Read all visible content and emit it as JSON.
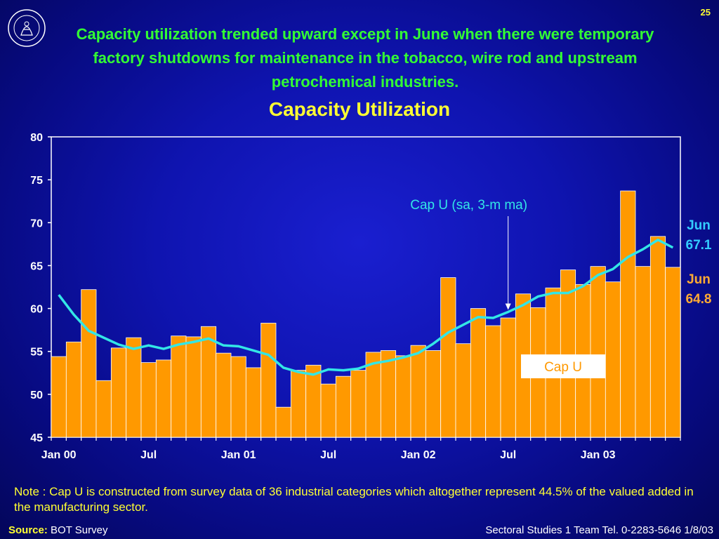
{
  "page_number": "25",
  "headline": "Capacity utilization trended upward except in June when there were temporary factory shutdowns for maintenance in the tobacco, wire rod and upstream petrochemical industries.",
  "note": "Note :  Cap U is constructed from survey data of 36 industrial categories which altogether represent 44.5% of the valued added in the manufacturing sector.",
  "source": {
    "label": "Source:",
    "value": "BOT Survey"
  },
  "footer": "Sectoral Studies 1 Team  Tel. 0-2283-5646 1/8/03",
  "colors": {
    "bar": "#ff9900",
    "line": "#33e6e6",
    "text": "#ffff33",
    "headline": "#33ff33",
    "series_label_line": "#33ccff",
    "series_label_bar": "#ffaa33"
  },
  "chart_data": {
    "type": "bar",
    "title": "Capacity Utilization",
    "xlabel": "",
    "ylabel": "",
    "ylim": [
      45,
      80
    ],
    "yticks": [
      45,
      50,
      55,
      60,
      65,
      70,
      75,
      80
    ],
    "grid": false,
    "x_tick_labels": [
      {
        "index": 0,
        "label": "Jan 00"
      },
      {
        "index": 6,
        "label": "Jul"
      },
      {
        "index": 12,
        "label": "Jan 01"
      },
      {
        "index": 18,
        "label": "Jul"
      },
      {
        "index": 24,
        "label": "Jan 02"
      },
      {
        "index": 30,
        "label": "Jul"
      },
      {
        "index": 36,
        "label": "Jan 03"
      }
    ],
    "series": [
      {
        "name": "Cap U",
        "type": "bar",
        "values": [
          54.4,
          56.1,
          62.2,
          51.6,
          55.4,
          56.6,
          53.7,
          54.0,
          56.8,
          56.7,
          57.9,
          54.8,
          54.4,
          53.1,
          58.3,
          48.5,
          52.8,
          53.4,
          51.2,
          52.1,
          52.8,
          54.9,
          55.1,
          54.5,
          55.7,
          55.1,
          63.6,
          55.9,
          60.0,
          58.0,
          58.9,
          61.7,
          60.1,
          62.4,
          64.5,
          62.8,
          64.9,
          63.1,
          73.7,
          64.9,
          68.4,
          64.8
        ]
      },
      {
        "name": "Cap U (sa, 3-m ma)",
        "type": "line",
        "values": [
          61.6,
          59.3,
          57.4,
          56.6,
          55.8,
          55.3,
          55.7,
          55.3,
          55.8,
          56.1,
          56.5,
          55.7,
          55.6,
          55.1,
          54.6,
          53.1,
          52.6,
          52.3,
          52.9,
          52.8,
          53.0,
          53.6,
          53.9,
          54.3,
          54.8,
          55.9,
          57.2,
          58.1,
          59.0,
          58.9,
          59.6,
          60.4,
          61.4,
          61.8,
          61.8,
          62.6,
          63.9,
          64.6,
          66.0,
          66.9,
          68.0,
          67.1
        ]
      }
    ],
    "annotations": {
      "line_label": "Cap U (sa, 3-m ma)",
      "line_arrow_index": 30,
      "bar_label": "Cap U",
      "line_end_label": [
        "Jun",
        "67.1"
      ],
      "bar_end_label": [
        "Jun",
        "64.8"
      ]
    }
  }
}
